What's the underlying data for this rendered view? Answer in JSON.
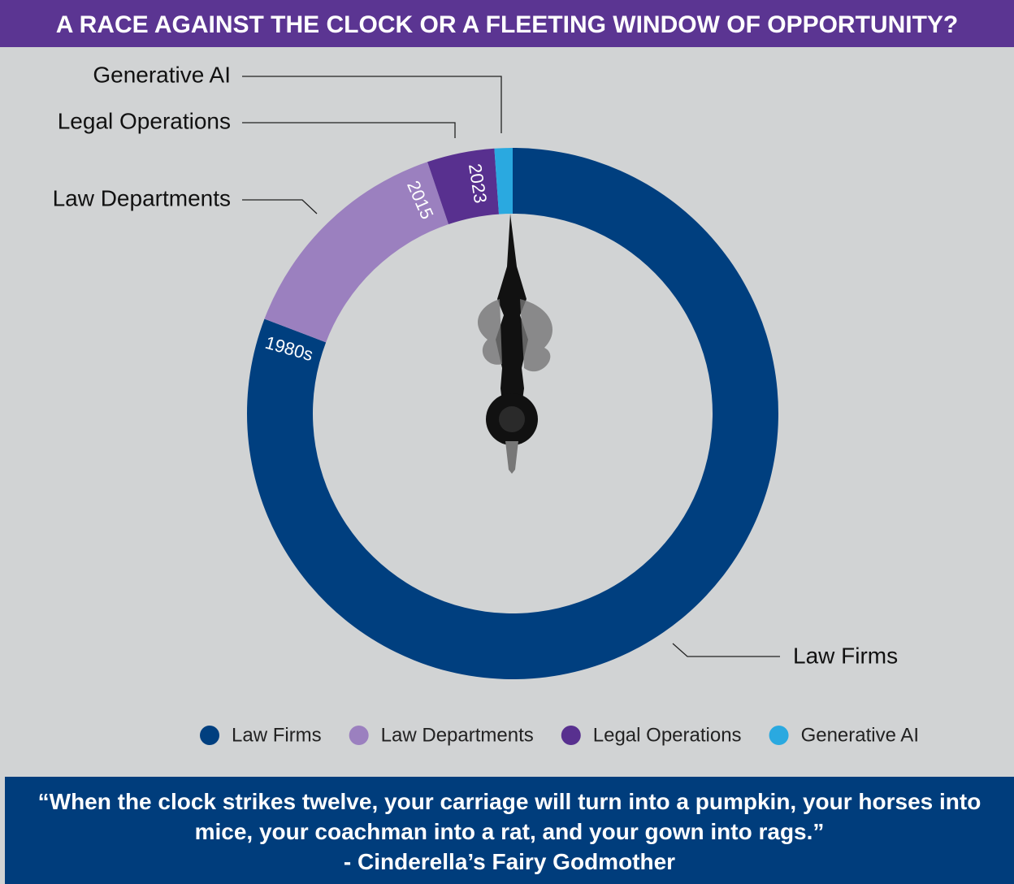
{
  "header": {
    "title": "A RACE AGAINST THE CLOCK OR A FLEETING WINDOW OF OPPORTUNITY?"
  },
  "chart_data": {
    "type": "donut",
    "categories": [
      "Law Firms",
      "Law Departments",
      "Legal Operations",
      "Generative AI"
    ],
    "values": [
      80.8,
      14,
      4.1,
      1.1
    ],
    "colors": [
      "#003f7f",
      "#9b80bf",
      "#58308f",
      "#2aa9e0"
    ],
    "era_labels": [
      "1980s",
      "2015",
      "2023",
      null
    ]
  },
  "footer": {
    "quote": [
      "“When the clock strikes twelve, your carriage will turn into a pumpkin, your horses into",
      "mice, your coachman into a rat, and your gown into rags.”"
    ],
    "attribution": "- Cinderella’s Fairy Godmother"
  }
}
